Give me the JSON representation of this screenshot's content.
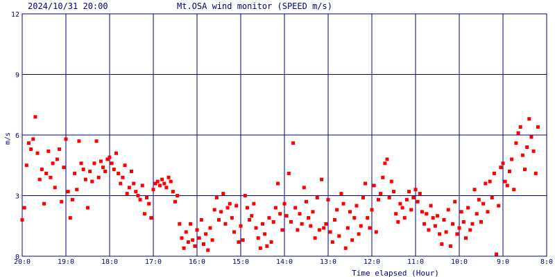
{
  "header": {
    "datetime": "2024/10/31 20:00",
    "title": "Mt.OSA wind monitor (SPEED m/s)"
  },
  "chart_data": {
    "type": "scatter",
    "title": "Mt.OSA wind monitor (SPEED m/s)",
    "xlabel": "Time elapsed (Hour)",
    "ylabel": "m/s",
    "x_ticks": [
      "20:0",
      "19:0",
      "18:0",
      "17:0",
      "16:0",
      "15:0",
      "14:0",
      "13:0",
      "12:0",
      "11:0",
      "10:0",
      "9:0",
      "8:0"
    ],
    "y_ticks": [
      "0",
      "3",
      "6",
      "9",
      "12"
    ],
    "xlim_hours_elapsed": [
      0,
      12
    ],
    "ylim": [
      0,
      12
    ],
    "grid": true,
    "colors": {
      "background": "#ffffff",
      "grid": "#000080",
      "axes_text": "#000080",
      "title_text": "#000080",
      "points": "#ff0000"
    },
    "series": [
      {
        "x_hours_elapsed": [
          0.0,
          0.05,
          0.1,
          0.15,
          0.2,
          0.25,
          0.3,
          0.35,
          0.4,
          0.45,
          0.5,
          0.55,
          0.6,
          0.65,
          0.7,
          0.75,
          0.8,
          0.85,
          0.9,
          0.95,
          1.0,
          1.05,
          1.1,
          1.15,
          1.2,
          1.25,
          1.3,
          1.35,
          1.4,
          1.45,
          1.5,
          1.55,
          1.6,
          1.65,
          1.7,
          1.75,
          1.8,
          1.85,
          1.9,
          1.95,
          2.0,
          2.05,
          2.1,
          2.15,
          2.2,
          2.25,
          2.3,
          2.35,
          2.4,
          2.45,
          2.5,
          2.55,
          2.6,
          2.65,
          2.7,
          2.75,
          2.8,
          2.85,
          2.9,
          2.95,
          3.0,
          3.05,
          3.1,
          3.15,
          3.2,
          3.25,
          3.3,
          3.35,
          3.4,
          3.45,
          3.5,
          3.55,
          3.6,
          3.65,
          3.7,
          3.75,
          3.8,
          3.85,
          3.9,
          3.95,
          4.0,
          4.05,
          4.1,
          4.15,
          4.2,
          4.25,
          4.3,
          4.35,
          4.4,
          4.45,
          4.5,
          4.55,
          4.6,
          4.65,
          4.7,
          4.75,
          4.8,
          4.85,
          4.9,
          4.95,
          5.0,
          5.05,
          5.1,
          5.15,
          5.2,
          5.25,
          5.3,
          5.35,
          5.4,
          5.45,
          5.5,
          5.55,
          5.6,
          5.65,
          5.7,
          5.75,
          5.8,
          5.85,
          5.9,
          5.95,
          6.0,
          6.05,
          6.1,
          6.15,
          6.2,
          6.25,
          6.3,
          6.35,
          6.4,
          6.45,
          6.5,
          6.55,
          6.6,
          6.65,
          6.7,
          6.75,
          6.8,
          6.85,
          6.9,
          6.95,
          7.0,
          7.05,
          7.1,
          7.15,
          7.2,
          7.25,
          7.3,
          7.35,
          7.4,
          7.45,
          7.5,
          7.55,
          7.6,
          7.65,
          7.7,
          7.75,
          7.8,
          7.85,
          7.9,
          7.95,
          8.0,
          8.05,
          8.1,
          8.15,
          8.2,
          8.25,
          8.3,
          8.35,
          8.4,
          8.45,
          8.5,
          8.55,
          8.6,
          8.65,
          8.7,
          8.75,
          8.8,
          8.85,
          8.9,
          8.95,
          9.0,
          9.05,
          9.1,
          9.15,
          9.2,
          9.25,
          9.3,
          9.35,
          9.4,
          9.45,
          9.5,
          9.55,
          9.6,
          9.65,
          9.7,
          9.75,
          9.8,
          9.85,
          9.9,
          9.95,
          10.0,
          10.05,
          10.1,
          10.15,
          10.2,
          10.25,
          10.3,
          10.35,
          10.4,
          10.45,
          10.5,
          10.55,
          10.6,
          10.65,
          10.7,
          10.75,
          10.8,
          10.85,
          10.9,
          10.95,
          11.0,
          11.05,
          11.1,
          11.15,
          11.2,
          11.25,
          11.3,
          11.35,
          11.4,
          11.45,
          11.5,
          11.55,
          11.6,
          11.65,
          11.7,
          11.75,
          11.8,
          11.85,
          11.9,
          11.95
        ],
        "y": [
          1.8,
          2.4,
          4.5,
          5.6,
          5.3,
          5.8,
          6.9,
          5.1,
          3.8,
          4.3,
          2.6,
          4.1,
          5.2,
          3.9,
          4.6,
          3.4,
          4.8,
          5.3,
          2.7,
          4.4,
          5.8,
          3.2,
          1.9,
          2.8,
          4.1,
          3.3,
          5.7,
          4.6,
          4.3,
          3.8,
          2.4,
          4.2,
          3.7,
          4.6,
          5.7,
          3.9,
          4.7,
          4.4,
          4.2,
          4.8,
          4.9,
          4.6,
          4.3,
          5.1,
          4.1,
          3.6,
          3.9,
          4.5,
          3.1,
          3.4,
          4.2,
          3.6,
          3.2,
          3.0,
          2.8,
          3.5,
          2.1,
          2.9,
          2.6,
          1.9,
          3.3,
          3.6,
          3.7,
          3.5,
          3.8,
          3.6,
          3.4,
          3.9,
          3.7,
          3.2,
          2.7,
          3.0,
          1.6,
          0.9,
          0.4,
          1.2,
          0.7,
          1.6,
          0.8,
          0.5,
          1.3,
          0.9,
          1.8,
          0.6,
          1.1,
          0.3,
          1.4,
          0.8,
          2.3,
          2.9,
          1.8,
          2.2,
          3.1,
          1.6,
          2.4,
          2.6,
          1.9,
          1.2,
          2.5,
          0.7,
          1.5,
          0.8,
          3.0,
          2.4,
          1.8,
          2.0,
          2.6,
          1.4,
          0.9,
          0.4,
          1.6,
          1.1,
          0.5,
          1.9,
          0.7,
          1.7,
          2.4,
          3.6,
          2.1,
          1.3,
          2.6,
          2.0,
          4.1,
          1.7,
          5.6,
          2.4,
          1.3,
          2.1,
          1.6,
          3.4,
          2.7,
          1.9,
          1.5,
          2.2,
          0.9,
          2.9,
          1.3,
          3.8,
          1.4,
          1.6,
          2.8,
          1.2,
          0.7,
          1.8,
          2.3,
          1.0,
          3.1,
          2.6,
          0.4,
          1.4,
          2.2,
          0.8,
          1.9,
          2.5,
          1.1,
          1.5,
          2.9,
          3.6,
          1.9,
          1.4,
          2.3,
          3.5,
          1.2,
          2.8,
          3.1,
          3.9,
          4.6,
          4.8,
          2.9,
          3.7,
          3.2,
          2.1,
          1.7,
          2.6,
          2.4,
          1.9,
          2.8,
          3.2,
          2.3,
          2.9,
          3.3,
          2.7,
          3.1,
          2.2,
          1.6,
          2.1,
          1.3,
          2.5,
          1.9,
          1.5,
          2.0,
          1.1,
          0.6,
          1.8,
          1.2,
          2.3,
          0.5,
          1.6,
          2.7,
          1.1,
          1.4,
          2.2,
          1.7,
          0.9,
          2.4,
          1.3,
          1.6,
          3.3,
          2.1,
          2.8,
          1.7,
          2.6,
          3.6,
          2.2,
          3.7,
          2.9,
          4.1,
          0.1,
          2.5,
          4.4,
          4.6,
          3.7,
          3.5,
          4.2,
          4.8,
          3.3,
          5.6,
          6.1,
          6.4,
          5.0,
          4.3,
          5.4,
          6.8,
          5.9,
          5.2,
          4.1,
          6.4
        ]
      }
    ]
  }
}
